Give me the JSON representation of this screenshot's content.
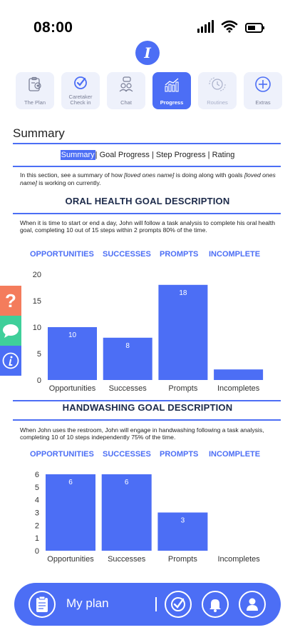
{
  "status": {
    "time": "08:00"
  },
  "logo_letter": "I",
  "tabs": [
    {
      "label": "The Plan"
    },
    {
      "label": "Caretaker Check in"
    },
    {
      "label": "Chat"
    },
    {
      "label": "Progress"
    },
    {
      "label": "Routines"
    },
    {
      "label": "Extras"
    }
  ],
  "page_title": "Summary",
  "subnav": {
    "summary": "Summary",
    "goal_progress": "Goal Progress",
    "step_progress": "Step Progress",
    "rating": "Rating",
    "sep": "|"
  },
  "intro": {
    "part1": "In this section, see a summary of how ",
    "em1": "[loved ones name]",
    "part2": " is doing along with goals ",
    "em2": "[loved ones name]",
    "part3": " is working on currently."
  },
  "goals": [
    {
      "heading": "ORAL HEALTH GOAL DESCRIPTION",
      "description": "When it is time to start or end a day, John will follow a task analysis to complete his oral health goal, completing 10 out of 15 steps within 2 prompts 80% of the time.",
      "stats": [
        "OPPORTUNITIES",
        "SUCCESSES",
        "PROMPTS",
        "INCOMPLETE"
      ]
    },
    {
      "heading": "HANDWASHING GOAL DESCRIPTION",
      "description": "When John uses the restroom, John will engage in handwashing following a task analysis, completing 10 of 10 steps independently 75% of the time.",
      "stats": [
        "OPPORTUNITIES",
        "SUCCESSES",
        "PROMPTS",
        "INCOMPLETE"
      ]
    }
  ],
  "chart_data": [
    {
      "type": "bar",
      "categories": [
        "Opportunities",
        "Successes",
        "Prompts",
        "Incompletes"
      ],
      "values": [
        10,
        8,
        18,
        2
      ],
      "value_labels": [
        "10",
        "8",
        "18",
        ""
      ],
      "yticks": [
        0,
        5,
        10,
        15,
        20
      ],
      "ylim": [
        0,
        20
      ],
      "color": "#4c6ef5"
    },
    {
      "type": "bar",
      "categories": [
        "Opportunities",
        "Successes",
        "Prompts",
        "Incompletes"
      ],
      "values": [
        6,
        6,
        3,
        0
      ],
      "value_labels": [
        "6",
        "6",
        "3",
        ""
      ],
      "yticks": [
        0,
        1,
        2,
        3,
        4,
        5,
        6
      ],
      "ylim": [
        0,
        6
      ],
      "color": "#4c6ef5"
    }
  ],
  "side_buttons": {
    "help": "?"
  },
  "bottom_bar": {
    "label": "My plan"
  },
  "colors": {
    "accent": "#4c6ef5",
    "help": "#f47c5c",
    "chat": "#3fcf9a",
    "heading": "#1c2a4a"
  }
}
